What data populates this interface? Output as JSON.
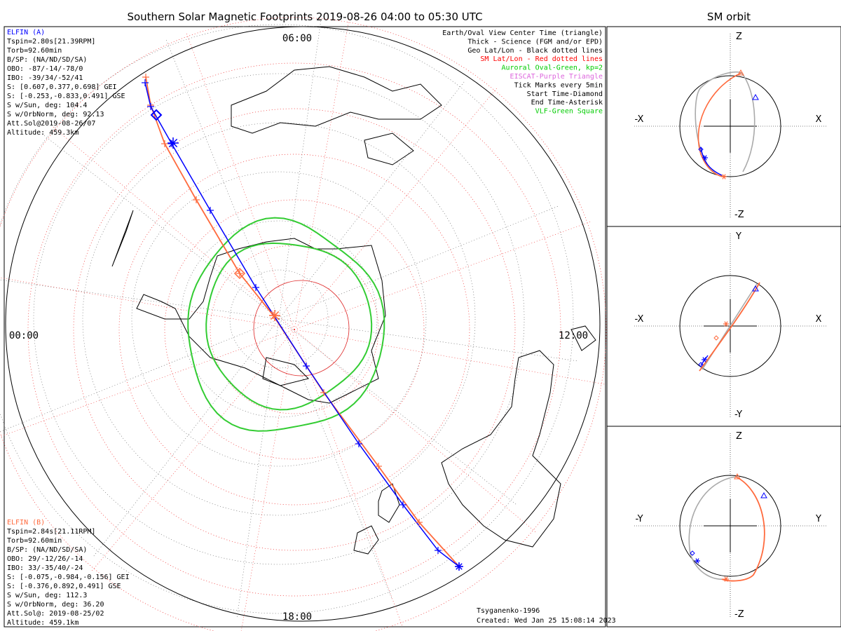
{
  "title": "Southern Solar Magnetic Footprints 2019-08-26 04:00 to 05:30 UTC",
  "orbit_title": "SM orbit",
  "clock": {
    "top": "06:00",
    "left": "00:00",
    "right": "12:00",
    "bottom": "18:00"
  },
  "sat_a": {
    "name": "ELFIN (A)",
    "color": "#0000ff",
    "lines": [
      "Tspin=2.80s[21.39RPM]",
      "Torb=92.60min",
      "B/SP: (NA/ND/SD/SA)",
      "OBO: -87/-14/-78/0",
      "IBO: -39/34/-52/41",
      "S: [0.607,0.377,0.698] GEI",
      "S: [-0.253,-0.833,0.491] GSE",
      "S w/Sun, deg: 104.4",
      "S w/OrbNorm, deg: 92.13",
      "Att.Sol@2019-08-26/07",
      "Altitude: 459.3km"
    ]
  },
  "sat_b": {
    "name": "ELFIN (B)",
    "color": "#ff6a3d",
    "lines": [
      "Tspin=2.84s[21.11RPM]",
      "Torb=92.60min",
      "B/SP: (NA/ND/SD/SA)",
      "OBO: 29/-12/26/-14",
      "IBO: 33/-35/40/-24",
      "S: [-0.075,-0.984,-0.156] GEI",
      "S: [-0.376,0.892,0.491] GSE",
      "S w/Sun, deg: 112.3",
      "S w/OrbNorm, deg: 36.20",
      "Att.Sol@: 2019-08-25/02",
      "Altitude: 459.1km"
    ]
  },
  "legend": [
    {
      "text": "Earth/Oval View Center Time (triangle)",
      "color": "#000000"
    },
    {
      "text": "Thick - Science (FGM and/or EPD)",
      "color": "#000000"
    },
    {
      "text": "Geo Lat/Lon - Black dotted lines",
      "color": "#000000"
    },
    {
      "text": "SM Lat/Lon - Red dotted lines",
      "color": "#ff0000"
    },
    {
      "text": "Auroral Oval-Green, kp=2",
      "color": "#00cc00"
    },
    {
      "text": "EISCAT-Purple Triangle",
      "color": "#dd66dd"
    },
    {
      "text": "Tick Marks every 5min",
      "color": "#000000"
    },
    {
      "text": "Start Time-Diamond",
      "color": "#000000"
    },
    {
      "text": "End Time-Asterisk",
      "color": "#000000"
    },
    {
      "text": "VLF-Green Square",
      "color": "#00cc00"
    }
  ],
  "footer": {
    "model": "Tsyganenko-1996",
    "created": "Created: Wed Jan 25 15:08:14 2023"
  },
  "panels": [
    {
      "top": "Z",
      "bottom": "-Z",
      "left": "-X",
      "right": "X"
    },
    {
      "top": "Y",
      "bottom": "-Y",
      "left": "-X",
      "right": "X"
    },
    {
      "top": "Z",
      "bottom": "-Z",
      "left": "-Y",
      "right": "Y"
    }
  ]
}
